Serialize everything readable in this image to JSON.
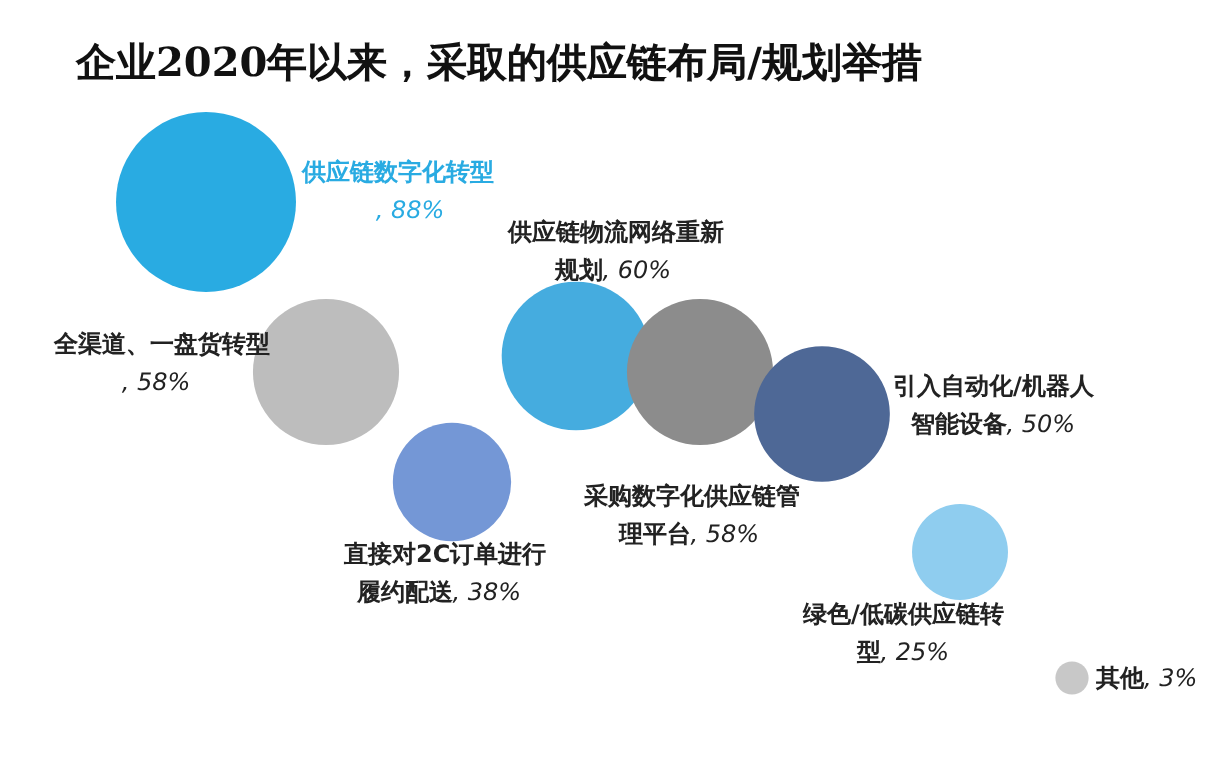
{
  "chart_data": {
    "type": "other",
    "title": "企业2020年以来，采取的供应链布局/规划举措",
    "categories": [
      "供应链数字化转型",
      "全渠道、一盘货转型",
      "直接对2C订单进行履约配送",
      "供应链物流网络重新规划",
      "采购数字化供应链管理平台",
      "引入自动化/机器人智能设备",
      "绿色/低碳供应链转型",
      "其他"
    ],
    "values": [
      88,
      58,
      38,
      60,
      58,
      50,
      25,
      3
    ],
    "value_labels": [
      ", 88%",
      ", 58%",
      ", 38%",
      ", 60%",
      ", 58%",
      ", 50%",
      ", 25%",
      ", 3%"
    ],
    "colors": [
      "#29abe2",
      "#bdbdbd",
      "#7497d6",
      "#45acdf",
      "#8c8c8c",
      "#4e6896",
      "#8fcdef",
      "#c8c8c8"
    ],
    "data_labels": true
  }
}
